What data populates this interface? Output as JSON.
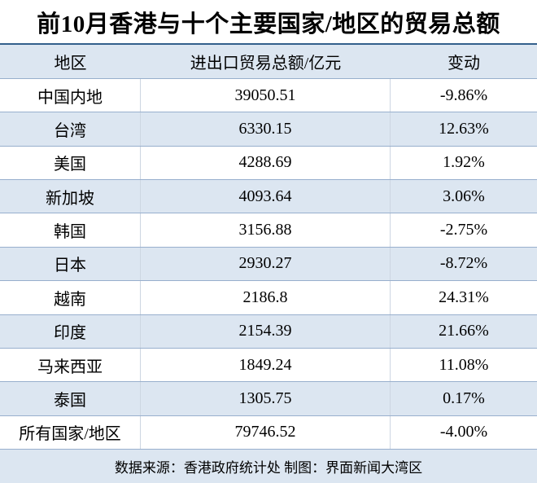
{
  "title": "前10月香港与十个主要国家/地区的贸易总额",
  "header": {
    "region": "地区",
    "total": "进出口贸易总额/亿元",
    "change": "变动"
  },
  "rows": [
    {
      "region": "中国内地",
      "total": "39050.51",
      "change": "-9.86%"
    },
    {
      "region": "台湾",
      "total": "6330.15",
      "change": "12.63%"
    },
    {
      "region": "美国",
      "total": "4288.69",
      "change": "1.92%"
    },
    {
      "region": "新加坡",
      "total": "4093.64",
      "change": "3.06%"
    },
    {
      "region": "韩国",
      "total": "3156.88",
      "change": "-2.75%"
    },
    {
      "region": "日本",
      "total": "2930.27",
      "change": "-8.72%"
    },
    {
      "region": "越南",
      "total": "2186.8",
      "change": "24.31%"
    },
    {
      "region": "印度",
      "total": "2154.39",
      "change": "21.66%"
    },
    {
      "region": "马来西亚",
      "total": "1849.24",
      "change": "11.08%"
    },
    {
      "region": "泰国",
      "total": "1305.75",
      "change": "0.17%"
    },
    {
      "region": "所有国家/地区",
      "total": "79746.52",
      "change": "-4.00%"
    }
  ],
  "footer_note": "数据来源：香港政府统计处 制图：界面新闻大湾区",
  "colors": {
    "accent_bg": "#dce6f1",
    "row_border": "#98afcd",
    "divider": "#cdd6e2",
    "title_rule": "#33608c",
    "text": "#000000",
    "page_bg": "#ffffff"
  },
  "chart_data": {
    "type": "table",
    "title": "前10月香港与十个主要国家/地区的贸易总额",
    "columns": [
      "地区",
      "进出口贸易总额/亿元",
      "变动"
    ],
    "categories": [
      "中国内地",
      "台湾",
      "美国",
      "新加坡",
      "韩国",
      "日本",
      "越南",
      "印度",
      "马来西亚",
      "泰国",
      "所有国家/地区"
    ],
    "series": [
      {
        "name": "进出口贸易总额/亿元",
        "values": [
          39050.51,
          6330.15,
          4288.69,
          4093.64,
          3156.88,
          2930.27,
          2186.8,
          2154.39,
          1849.24,
          1305.75,
          79746.52
        ]
      },
      {
        "name": "变动(%)",
        "values": [
          -9.86,
          12.63,
          1.92,
          3.06,
          -2.75,
          -8.72,
          24.31,
          21.66,
          11.08,
          0.17,
          -4.0
        ]
      }
    ],
    "annotations": [
      "数据来源：香港政府统计处 制图：界面新闻大湾区"
    ],
    "layout_hints": {
      "zebra_striping": true,
      "stripe_color": "#dce6f1",
      "text_align": "center"
    }
  }
}
